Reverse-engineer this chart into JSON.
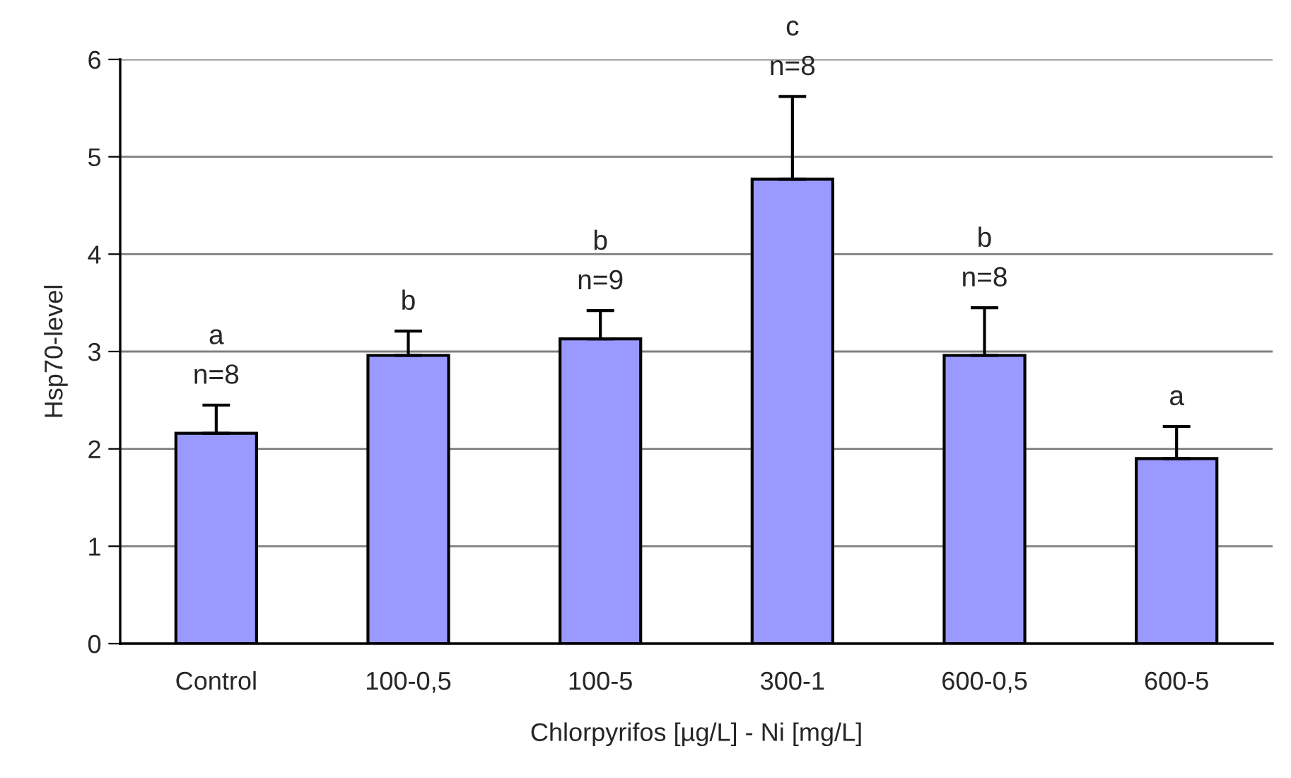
{
  "chart_data": {
    "type": "bar",
    "xlabel": "Chlorpyrifos [µg/L] - Ni [mg/L]",
    "ylabel": "Hsp70-level",
    "categories": [
      "Control",
      "100-0,5",
      "100-5",
      "300-1",
      "600-0,5",
      "600-5"
    ],
    "values": [
      2.16,
      2.96,
      3.13,
      4.77,
      2.96,
      1.9
    ],
    "errors": [
      [
        2.16,
        2.45
      ],
      [
        2.96,
        3.21
      ],
      [
        3.13,
        3.42
      ],
      [
        4.77,
        5.62
      ],
      [
        2.96,
        3.45
      ],
      [
        1.9,
        2.23
      ]
    ],
    "color": "#9999ff",
    "ylim": [
      0,
      6
    ],
    "yticks": [
      0,
      1,
      2,
      3,
      4,
      5,
      6
    ],
    "grid": "y",
    "legend": false,
    "annotations": [
      "a\nn=8",
      "b",
      "b\nn=9",
      "c\nn=8",
      "b\nn=8",
      "a"
    ]
  }
}
